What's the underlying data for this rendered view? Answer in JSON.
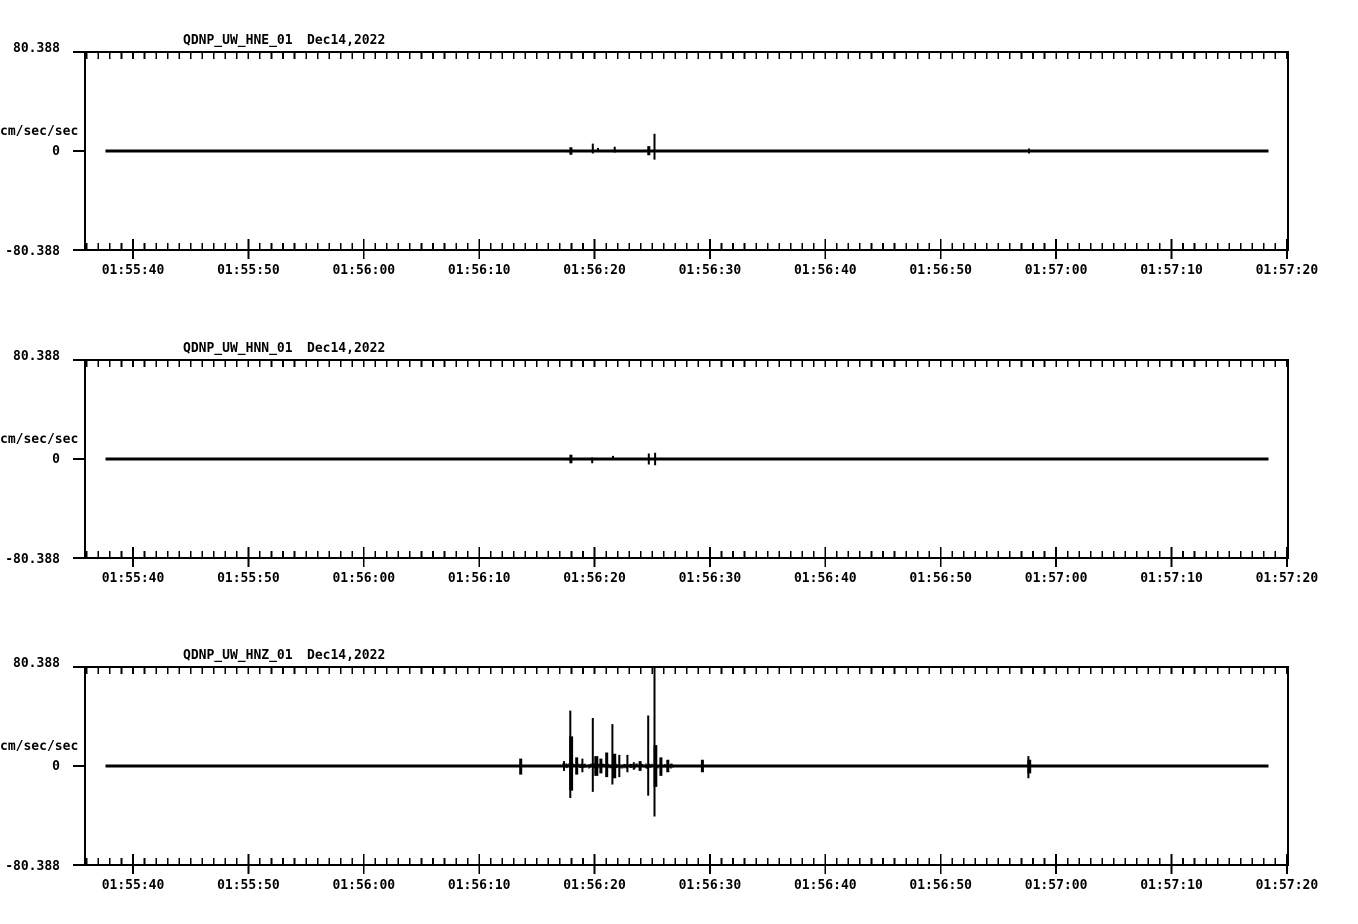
{
  "page": {
    "background": "#ffffff",
    "foreground": "#000000"
  },
  "chart_data": [
    {
      "type": "line",
      "station": "QDNP_UW_HNE_01",
      "date": "Dec14,2022",
      "unit": "cm/sec/sec",
      "ylim": [
        -80.388,
        80.388
      ],
      "yticks": {
        "max": "80.388",
        "zero": "0",
        "min": "-80.388"
      },
      "grid": false,
      "time_reference": "01:55:00",
      "xticks": {
        "start_s": 40,
        "step_s": 10,
        "minor_step_s": 1,
        "labels": [
          "01:55:40",
          "01:55:50",
          "01:56:00",
          "01:56:10",
          "01:56:20",
          "01:56:30",
          "01:56:40",
          "01:56:50",
          "01:57:00",
          "01:57:10",
          "01:57:20"
        ]
      },
      "trace": {
        "baseline": 0,
        "start_s": 37.6,
        "end_s": 138.4
      },
      "spikes": [
        {
          "t": 77.95,
          "up": 3,
          "down": 3,
          "w": 3
        },
        {
          "t": 79.85,
          "up": 6,
          "down": 2,
          "w": 2
        },
        {
          "t": 80.3,
          "up": 2.5,
          "down": 1,
          "w": 2
        },
        {
          "t": 81.75,
          "up": 3.5,
          "down": 1.5,
          "w": 2
        },
        {
          "t": 84.7,
          "up": 4,
          "down": 3.5,
          "w": 3
        },
        {
          "t": 85.2,
          "up": 14,
          "down": 7,
          "w": 2
        },
        {
          "t": 117.65,
          "up": 2,
          "down": 2,
          "w": 2
        }
      ],
      "noise": [
        {
          "t0": 77.6,
          "t1": 78.3,
          "amp": 1.2
        }
      ]
    },
    {
      "type": "line",
      "station": "QDNP_UW_HNN_01",
      "date": "Dec14,2022",
      "unit": "cm/sec/sec",
      "ylim": [
        -80.388,
        80.388
      ],
      "yticks": {
        "max": "80.388",
        "zero": "0",
        "min": "-80.388"
      },
      "grid": false,
      "time_reference": "01:55:00",
      "xticks": {
        "start_s": 40,
        "step_s": 10,
        "minor_step_s": 1,
        "labels": [
          "01:55:40",
          "01:55:50",
          "01:56:00",
          "01:56:10",
          "01:56:20",
          "01:56:30",
          "01:56:40",
          "01:56:50",
          "01:57:00",
          "01:57:10",
          "01:57:20"
        ]
      },
      "trace": {
        "baseline": 0,
        "start_s": 37.6,
        "end_s": 138.4
      },
      "spikes": [
        {
          "t": 77.95,
          "up": 3.5,
          "down": 3.5,
          "w": 3
        },
        {
          "t": 79.8,
          "up": 1.5,
          "down": 3.5,
          "w": 2
        },
        {
          "t": 81.6,
          "up": 2.5,
          "down": 1,
          "w": 2
        },
        {
          "t": 84.7,
          "up": 4.5,
          "down": 4.5,
          "w": 2
        },
        {
          "t": 85.25,
          "up": 5,
          "down": 5,
          "w": 2
        }
      ],
      "noise": [
        {
          "t0": 77.6,
          "t1": 78.2,
          "amp": 1.2
        }
      ]
    },
    {
      "type": "line",
      "station": "QDNP_UW_HNZ_01",
      "date": "Dec14,2022",
      "unit": "cm/sec/sec",
      "ylim": [
        -80.388,
        80.388
      ],
      "yticks": {
        "max": "80.388",
        "zero": "0",
        "min": "-80.388"
      },
      "grid": false,
      "time_reference": "01:55:00",
      "xticks": {
        "start_s": 40,
        "step_s": 10,
        "minor_step_s": 1,
        "labels": [
          "01:55:40",
          "01:55:50",
          "01:56:00",
          "01:56:10",
          "01:56:20",
          "01:56:30",
          "01:56:40",
          "01:56:50",
          "01:57:00",
          "01:57:10",
          "01:57:20"
        ]
      },
      "trace": {
        "baseline": 0,
        "start_s": 37.6,
        "end_s": 138.4
      },
      "spikes": [
        {
          "t": 73.6,
          "up": 6,
          "down": 7,
          "w": 3
        },
        {
          "t": 77.35,
          "up": 4,
          "down": 4,
          "w": 2
        },
        {
          "t": 77.9,
          "up": 45,
          "down": 26,
          "w": 2
        },
        {
          "t": 77.97,
          "up": 24,
          "down": 20,
          "w": 4
        },
        {
          "t": 78.45,
          "up": 7,
          "down": 7,
          "w": 3
        },
        {
          "t": 78.95,
          "up": 6,
          "down": 5,
          "w": 2
        },
        {
          "t": 79.85,
          "up": 39,
          "down": 21,
          "w": 2
        },
        {
          "t": 80.15,
          "up": 8,
          "down": 8,
          "w": 4
        },
        {
          "t": 80.55,
          "up": 6,
          "down": 6,
          "w": 3
        },
        {
          "t": 81.05,
          "up": 11,
          "down": 9,
          "w": 3
        },
        {
          "t": 81.55,
          "up": 34,
          "down": 15,
          "w": 2
        },
        {
          "t": 81.7,
          "up": 10,
          "down": 10,
          "w": 4
        },
        {
          "t": 82.15,
          "up": 9,
          "down": 9,
          "w": 2
        },
        {
          "t": 82.85,
          "up": 9,
          "down": 5,
          "w": 2
        },
        {
          "t": 83.4,
          "up": 3,
          "down": 3,
          "w": 2
        },
        {
          "t": 83.95,
          "up": 4,
          "down": 4,
          "w": 3
        },
        {
          "t": 84.65,
          "up": 41,
          "down": 24,
          "w": 2
        },
        {
          "t": 85.2,
          "up": 80.388,
          "down": 41,
          "w": 2
        },
        {
          "t": 85.27,
          "up": 17,
          "down": 17,
          "w": 4
        },
        {
          "t": 85.75,
          "up": 7,
          "down": 8,
          "w": 3
        },
        {
          "t": 86.35,
          "up": 5,
          "down": 5,
          "w": 3
        },
        {
          "t": 89.35,
          "up": 5,
          "down": 5,
          "w": 3
        },
        {
          "t": 117.6,
          "up": 8,
          "down": 10,
          "w": 2
        },
        {
          "t": 117.67,
          "up": 5,
          "down": 6,
          "w": 4
        }
      ],
      "noise": [
        {
          "t0": 77.3,
          "t1": 86.8,
          "amp": 2.0
        },
        {
          "t0": 88.9,
          "t1": 90.1,
          "amp": 0.9
        },
        {
          "t0": 117.2,
          "t1": 118.2,
          "amp": 1.2
        }
      ]
    }
  ]
}
